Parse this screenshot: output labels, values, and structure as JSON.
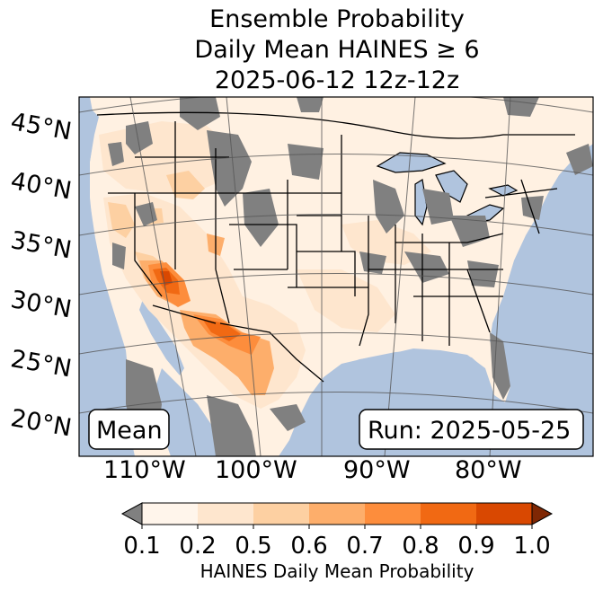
{
  "title": {
    "line1": "Ensemble Probability",
    "line2": "Daily Mean HAINES ≥ 6",
    "line3": "2025-06-12 12z-12z"
  },
  "map": {
    "latitude_labels": [
      "45°N",
      "40°N",
      "35°N",
      "30°N",
      "25°N",
      "20°N"
    ],
    "longitude_labels": [
      "110°W",
      "100°W",
      "90°W",
      "80°W"
    ],
    "stat_label": "Mean",
    "run_label": "Run: 2025-05-25",
    "colors": {
      "ocean": "#b0c4de",
      "no_data": "#808080",
      "land_low": "#fff5eb"
    }
  },
  "colorbar": {
    "ticks": [
      "0.1",
      "0.2",
      "0.5",
      "0.6",
      "0.7",
      "0.8",
      "0.9",
      "1.0"
    ],
    "label": "HAINES Daily Mean Probability",
    "bins": [
      {
        "range": "0.1-0.2",
        "color": "#fff5eb"
      },
      {
        "range": "0.2-0.5",
        "color": "#fee6ce"
      },
      {
        "range": "0.5-0.6",
        "color": "#fdd0a2"
      },
      {
        "range": "0.6-0.7",
        "color": "#fdae6b"
      },
      {
        "range": "0.7-0.8",
        "color": "#fd8d3c"
      },
      {
        "range": "0.8-0.9",
        "color": "#f16913"
      },
      {
        "range": "0.9-1.0",
        "color": "#d94801"
      }
    ],
    "under_color": "#808080",
    "over_color": "#7f2704"
  }
}
